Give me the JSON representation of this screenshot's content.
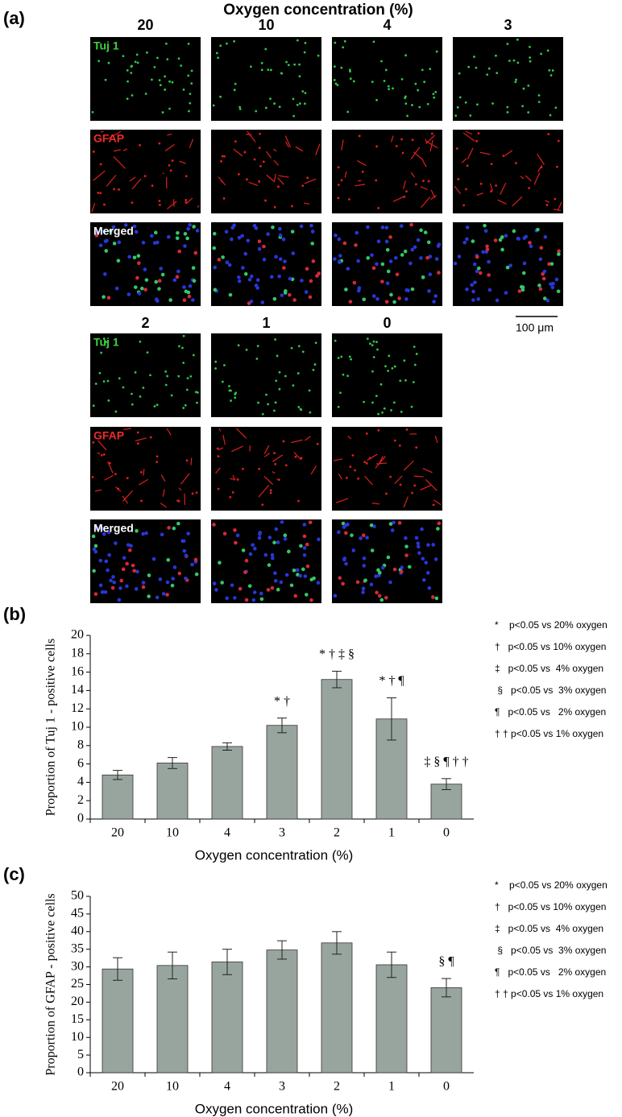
{
  "panel_a": {
    "label": "(a)",
    "title": "Oxygen concentration (%)",
    "columns_top": [
      "20",
      "10",
      "4",
      "3"
    ],
    "columns_bottom": [
      "2",
      "1",
      "0"
    ],
    "rows": [
      "Tuj 1",
      "GFAP",
      "Merged"
    ],
    "scale_bar": "100 μm"
  },
  "chart_data": [
    {
      "type": "bar",
      "label": "(b)",
      "ylabel": "Proportion of  Tuj 1 - positive cells",
      "xlabel": "Oxygen concentration (%)",
      "categories": [
        "20",
        "10",
        "4",
        "3",
        "2",
        "1",
        "0"
      ],
      "values": [
        4.8,
        6.1,
        7.9,
        10.2,
        15.2,
        10.9,
        3.8
      ],
      "errors": [
        0.5,
        0.6,
        0.4,
        0.8,
        0.9,
        2.3,
        0.6
      ],
      "annotations": [
        null,
        null,
        null,
        "* †",
        "* † ‡  §",
        "* † ¶",
        "‡  §  ¶  † †"
      ],
      "color": "#98a59f",
      "ylim": [
        0,
        20
      ],
      "yticks": [
        0,
        2,
        4,
        6,
        8,
        10,
        12,
        14,
        16,
        18,
        20
      ],
      "legend_notes": [
        "*    p<0.05 vs 20% oxygen",
        "†   p<0.05 vs 10% oxygen",
        "‡   p<0.05 vs  4% oxygen",
        " §   p<0.05 vs  3% oxygen",
        "¶   p<0.05 vs   2% oxygen",
        "† † p<0.05 vs 1% oxygen"
      ]
    },
    {
      "type": "bar",
      "label": "(c)",
      "ylabel": "Proportion of  GFAP - positive cells",
      "xlabel": "Oxygen concentration (%)",
      "categories": [
        "20",
        "10",
        "4",
        "3",
        "2",
        "1",
        "0"
      ],
      "values": [
        29.4,
        30.4,
        31.4,
        34.8,
        36.8,
        30.6,
        24.1
      ],
      "errors": [
        3.2,
        3.8,
        3.6,
        2.6,
        3.2,
        3.6,
        2.6
      ],
      "annotations": [
        null,
        null,
        null,
        null,
        null,
        null,
        "§  ¶"
      ],
      "color": "#98a59f",
      "ylim": [
        0,
        50
      ],
      "yticks": [
        0,
        5,
        10,
        15,
        20,
        25,
        30,
        35,
        40,
        45,
        50
      ],
      "legend_notes": [
        "*    p<0.05 vs 20% oxygen",
        "†   p<0.05 vs 10% oxygen",
        "‡   p<0.05 vs  4% oxygen",
        " §   p<0.05 vs  3% oxygen",
        "¶   p<0.05 vs   2% oxygen",
        "† † p<0.05 vs 1% oxygen"
      ]
    }
  ]
}
